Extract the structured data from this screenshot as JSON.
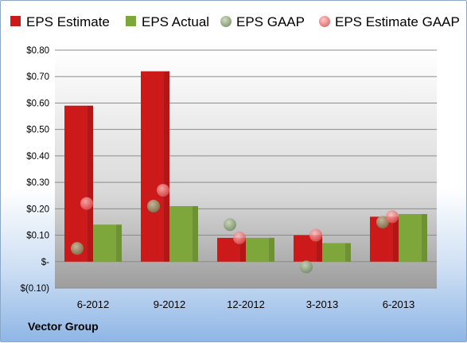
{
  "chart_data": {
    "type": "bar",
    "categories": [
      "6-2012",
      "9-2012",
      "12-2012",
      "3-2013",
      "6-2013"
    ],
    "series": [
      {
        "name": "EPS Estimate",
        "kind": "bar",
        "color": "#cc1a1a",
        "values": [
          0.59,
          0.72,
          0.09,
          0.1,
          0.17
        ]
      },
      {
        "name": "EPS Actual",
        "kind": "bar",
        "color": "#7da63b",
        "values": [
          0.14,
          0.21,
          0.09,
          0.07,
          0.18
        ]
      },
      {
        "name": "EPS GAAP",
        "kind": "marker",
        "color": "#8fa67d",
        "values": [
          0.05,
          0.21,
          0.14,
          -0.02,
          0.15
        ]
      },
      {
        "name": "EPS Estimate GAAP",
        "kind": "marker",
        "color": "#ee7d7d",
        "values": [
          0.22,
          0.27,
          0.09,
          0.1,
          0.17
        ]
      }
    ],
    "yticks": [
      "$0.80",
      "$0.70",
      "$0.60",
      "$0.50",
      "$0.40",
      "$0.30",
      "$0.20",
      "$0.10",
      "$-",
      "$(0.10)"
    ],
    "ylim": [
      -0.1,
      0.8
    ],
    "legend_position": "top",
    "grid": true
  },
  "footer": {
    "label": "Vector Group"
  }
}
